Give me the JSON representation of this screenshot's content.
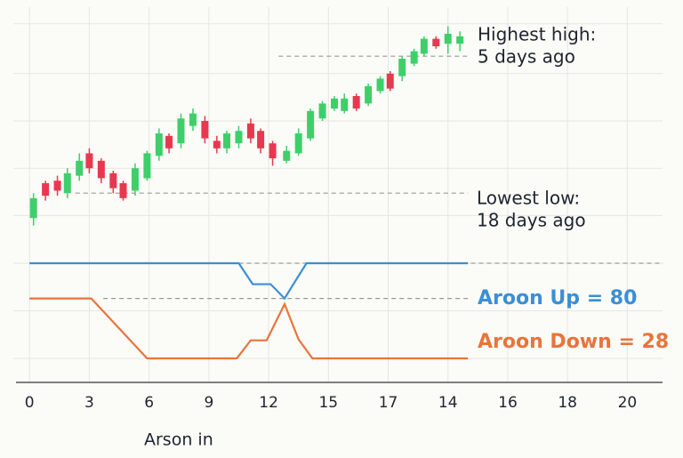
{
  "chart_data": [
    {
      "type": "candlestick",
      "annotations": [
        "Highest high:",
        "5 days ago",
        "Lowest low:",
        "18 days ago"
      ],
      "up_color": "#3ecf6a",
      "down_color": "#e8384f",
      "xlim": [
        -0.5,
        31.5
      ],
      "ylim": [
        0,
        100
      ],
      "grid_y": [
        17,
        36,
        55,
        74,
        94
      ],
      "x": [
        0.2,
        0.8,
        1.4,
        1.9,
        2.5,
        3.0,
        3.6,
        4.2,
        4.7,
        5.3,
        5.9,
        6.5,
        7.0,
        7.6,
        8.2,
        8.8,
        9.4,
        9.9,
        10.5,
        11.1,
        11.6,
        12.2,
        12.9,
        13.5,
        14.1,
        14.7,
        15.3,
        15.8,
        16.4,
        17.0,
        17.6,
        18.1,
        18.7,
        19.3,
        19.8,
        20.4,
        21.0,
        21.6
      ],
      "open": [
        16,
        30,
        31,
        26,
        33,
        42,
        39,
        34,
        30,
        27,
        32,
        41,
        49,
        46,
        53,
        55,
        47,
        44,
        46,
        54,
        51,
        46,
        39,
        42,
        48,
        56,
        60,
        59,
        65,
        62,
        67,
        74,
        73,
        78,
        82,
        88,
        86,
        86
      ],
      "high": [
        26,
        31,
        33,
        36,
        42,
        44,
        40,
        35,
        31,
        38,
        43,
        52,
        50,
        58,
        60,
        57,
        49,
        51,
        53,
        56,
        52,
        47,
        45,
        52,
        60,
        63,
        65,
        66,
        66,
        70,
        73,
        75,
        81,
        84,
        89,
        89,
        93,
        91
      ],
      "low": [
        13,
        23,
        25,
        24,
        31,
        34,
        30,
        26,
        23,
        25,
        31,
        39,
        42,
        44,
        51,
        46,
        42,
        42,
        44,
        46,
        42,
        37,
        38,
        41,
        47,
        55,
        59,
        58,
        59,
        61,
        66,
        67,
        71,
        77,
        81,
        84,
        82,
        83
      ],
      "close": [
        24,
        25,
        27,
        34,
        39,
        36,
        32,
        28,
        24,
        36,
        42,
        50,
        44,
        56,
        58,
        48,
        44,
        50,
        51,
        48,
        44,
        40,
        43,
        50,
        59,
        62,
        64,
        64,
        60,
        69,
        72,
        68,
        80,
        83,
        88,
        85,
        90,
        89
      ],
      "hlines": [
        {
          "y": 81,
          "x": [
            12.5,
            22
          ]
        },
        {
          "y": 26,
          "x": [
            2.3,
            22
          ]
        }
      ]
    },
    {
      "type": "line",
      "xlabel": "Arson  in",
      "xlim": [
        -0.5,
        31.5
      ],
      "ylim": [
        0,
        100
      ],
      "grid_y": [
        0,
        50,
        100
      ],
      "xticks": [
        0,
        3,
        6,
        9,
        12,
        15,
        {
          "value": 18,
          "label": "17"
        },
        {
          "value": 21,
          "label": "14"
        },
        {
          "value": 24,
          "label": "16"
        },
        {
          "value": 27,
          "label": "18"
        },
        {
          "value": 30,
          "label": "20"
        }
      ],
      "series": [
        {
          "name": "Aroon Up = 80",
          "color": "#3a8fd6",
          "x": [
            0,
            10.5,
            11.2,
            12.1,
            12.8,
            13.3,
            13.9,
            22
          ],
          "values": [
            100,
            100,
            78,
            78,
            63,
            80,
            100,
            100
          ]
        },
        {
          "name": "Aroon Down = 28",
          "color": "#e8743b",
          "x": [
            0,
            3.1,
            5.9,
            10.4,
            11.1,
            11.9,
            12.8,
            13.5,
            14.2,
            22
          ],
          "values": [
            63,
            63,
            0,
            0,
            19,
            19,
            57,
            20,
            0,
            0
          ]
        }
      ],
      "hlines": [
        {
          "y": 63,
          "x": [
            3.7,
            22
          ]
        },
        {
          "y": 100,
          "x": [
            10.5,
            31.8
          ]
        }
      ]
    }
  ]
}
